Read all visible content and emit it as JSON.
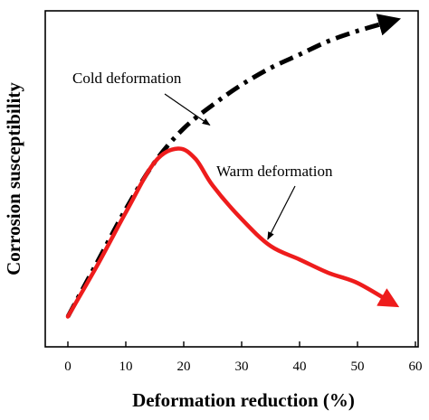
{
  "chart_data": {
    "type": "line",
    "title": "",
    "xlabel": "Deformation reduction (%)",
    "ylabel": "Corrosion susceptibility",
    "xlim": [
      0,
      60
    ],
    "ylim": [
      0,
      1
    ],
    "xticks": [
      "0",
      "10",
      "20",
      "30",
      "40",
      "50",
      "60"
    ],
    "yticks": [],
    "grid": false,
    "legend": "none",
    "series": [
      {
        "name": "Cold deformation",
        "style": "dash-dot",
        "color": "#000000",
        "x": [
          0,
          5,
          10,
          15,
          20,
          25,
          30,
          35,
          40,
          45,
          50,
          56
        ],
        "y": [
          0.09,
          0.25,
          0.41,
          0.55,
          0.65,
          0.72,
          0.78,
          0.83,
          0.87,
          0.91,
          0.94,
          0.97
        ]
      },
      {
        "name": "Warm deformation",
        "style": "solid",
        "color": "#ee1c1c",
        "x": [
          0,
          5,
          10,
          15,
          19,
          22,
          25,
          30,
          35,
          40,
          45,
          50,
          56
        ],
        "y": [
          0.09,
          0.24,
          0.4,
          0.55,
          0.59,
          0.56,
          0.48,
          0.38,
          0.3,
          0.26,
          0.22,
          0.19,
          0.13
        ]
      }
    ],
    "annotations": [
      {
        "text": "Cold deformation",
        "series": 0
      },
      {
        "text": "Warm deformation",
        "series": 1
      }
    ]
  }
}
